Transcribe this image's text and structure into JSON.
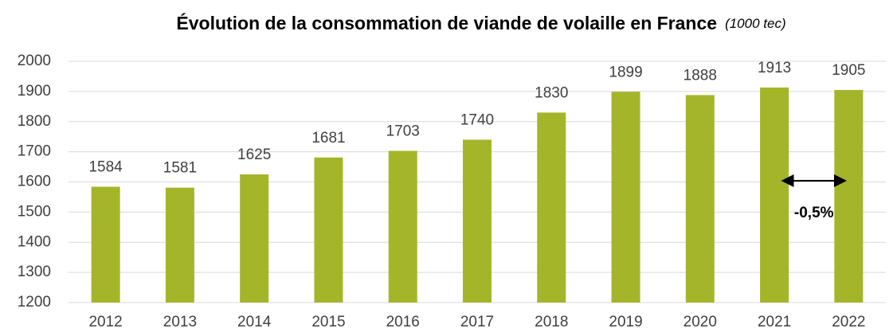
{
  "chart_data": {
    "type": "bar",
    "title": "Évolution de la consommation de viande de volaille en France",
    "subtitle": "(1000 tec)",
    "categories": [
      "2012",
      "2013",
      "2014",
      "2015",
      "2016",
      "2017",
      "2018",
      "2019",
      "2020",
      "2021",
      "2022"
    ],
    "values": [
      1584,
      1581,
      1625,
      1681,
      1703,
      1740,
      1830,
      1899,
      1888,
      1913,
      1905
    ],
    "color": "#a5b52a",
    "ylim": [
      1200,
      2000
    ],
    "yticks": [
      1200,
      1300,
      1400,
      1500,
      1600,
      1700,
      1800,
      1900,
      2000
    ],
    "grid": true,
    "annotation": "-0,5%"
  }
}
